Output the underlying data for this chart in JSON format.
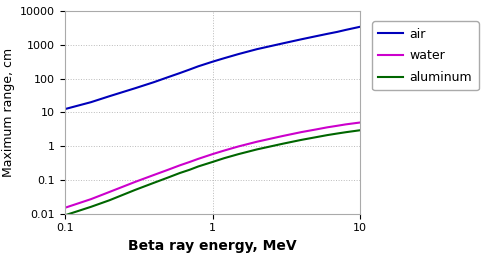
{
  "title": "",
  "xlabel": "Beta ray energy, MeV",
  "ylabel": "Maximum range, cm",
  "xlim": [
    0.1,
    10
  ],
  "ylim": [
    0.01,
    10000
  ],
  "line_air": {
    "label": "air",
    "color": "#0000bb",
    "x": [
      0.1,
      0.15,
      0.2,
      0.3,
      0.4,
      0.5,
      0.6,
      0.7,
      0.8,
      1.0,
      1.2,
      1.5,
      2.0,
      3.0,
      4.0,
      5.0,
      6.0,
      7.0,
      8.0,
      10.0
    ],
    "y": [
      12.5,
      20,
      30,
      52,
      78,
      110,
      145,
      185,
      230,
      315,
      400,
      530,
      740,
      1100,
      1450,
      1780,
      2100,
      2400,
      2750,
      3400
    ]
  },
  "line_water": {
    "label": "water",
    "color": "#cc00cc",
    "x": [
      0.1,
      0.15,
      0.2,
      0.3,
      0.4,
      0.5,
      0.6,
      0.7,
      0.8,
      1.0,
      1.2,
      1.5,
      2.0,
      3.0,
      4.0,
      5.0,
      6.0,
      7.0,
      8.0,
      10.0
    ],
    "y": [
      0.015,
      0.027,
      0.044,
      0.088,
      0.14,
      0.2,
      0.27,
      0.34,
      0.42,
      0.58,
      0.74,
      0.98,
      1.35,
      2.0,
      2.6,
      3.1,
      3.6,
      4.0,
      4.4,
      5.0
    ]
  },
  "line_aluminum": {
    "label": "aluminum",
    "color": "#006600",
    "x": [
      0.1,
      0.15,
      0.2,
      0.3,
      0.4,
      0.5,
      0.6,
      0.7,
      0.8,
      1.0,
      1.2,
      1.5,
      2.0,
      3.0,
      4.0,
      5.0,
      6.0,
      7.0,
      8.0,
      10.0
    ],
    "y": [
      0.009,
      0.016,
      0.025,
      0.051,
      0.082,
      0.118,
      0.16,
      0.2,
      0.25,
      0.34,
      0.44,
      0.58,
      0.8,
      1.18,
      1.53,
      1.83,
      2.12,
      2.36,
      2.58,
      2.95
    ]
  },
  "bg_color": "#ffffff",
  "grid_color": "#bbbbbb",
  "xlabel_fontsize": 10,
  "ylabel_fontsize": 9,
  "legend_fontsize": 9,
  "tick_fontsize": 8,
  "linewidth": 1.5
}
